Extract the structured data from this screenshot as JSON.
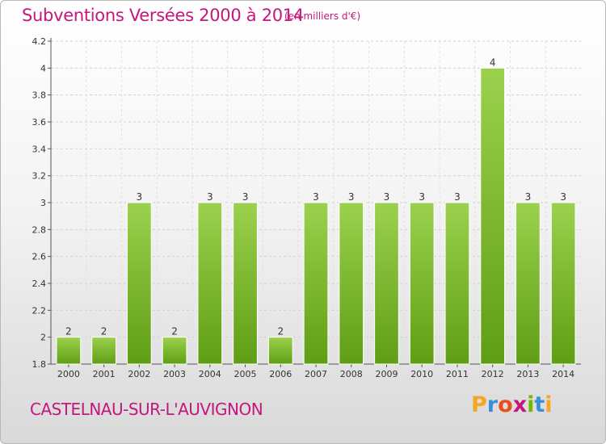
{
  "header": {
    "title": "Subventions Versées 2000 à 2014",
    "unit_note": "(en milliers d'€)"
  },
  "footer": {
    "commune": "CASTELNAU-SUR-L'AUVIGNON",
    "brand_letters": [
      "P",
      "r",
      "o",
      "x",
      "i",
      "t",
      "i"
    ],
    "brand_colors": [
      "#f5a623",
      "#3b8ed8",
      "#e94e1b",
      "#c4177e",
      "#7ab800",
      "#3b8ed8",
      "#f5a623"
    ]
  },
  "chart_data": {
    "type": "bar",
    "title": "Subventions Versées 2000 à 2014",
    "subtitle": "(en milliers d'€)",
    "xlabel": "",
    "ylabel": "",
    "categories": [
      "2000",
      "2001",
      "2002",
      "2003",
      "2004",
      "2005",
      "2006",
      "2007",
      "2008",
      "2009",
      "2010",
      "2011",
      "2012",
      "2013",
      "2014"
    ],
    "values": [
      2,
      2,
      3,
      2,
      3,
      3,
      2,
      3,
      3,
      3,
      3,
      3,
      4,
      3,
      3
    ],
    "data_labels": [
      "2",
      "2",
      "3",
      "2",
      "3",
      "3",
      "2",
      "3",
      "3",
      "3",
      "3",
      "3",
      "4",
      "3",
      "3"
    ],
    "ylim": [
      1.8,
      4.2
    ],
    "y_ticks": [
      1.8,
      2,
      2.2,
      2.4,
      2.6,
      2.8,
      3,
      3.2,
      3.4,
      3.6,
      3.8,
      4,
      4.2
    ],
    "y_tick_labels": [
      "1.8",
      "2",
      "2.2",
      "2.4",
      "2.6",
      "2.8",
      "3",
      "3.2",
      "3.4",
      "3.6",
      "3.8",
      "4",
      "4.2"
    ],
    "grid": true,
    "bar_color": "#7cbf2e"
  }
}
